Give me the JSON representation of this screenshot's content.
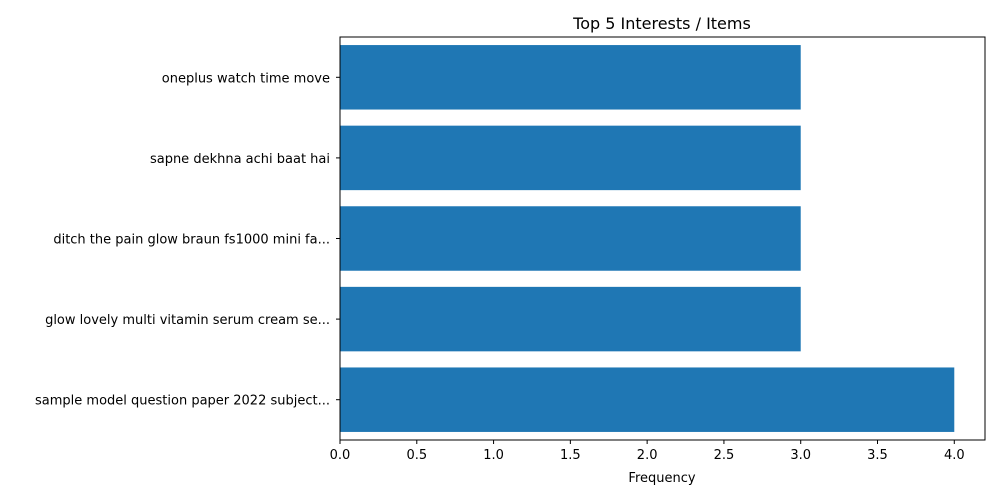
{
  "chart_data": {
    "type": "bar",
    "orientation": "horizontal",
    "title": "Top 5 Interests / Items",
    "xlabel": "Frequency",
    "ylabel": "",
    "xlim": [
      0,
      4.2
    ],
    "xticks": [
      "0.0",
      "0.5",
      "1.0",
      "1.5",
      "2.0",
      "2.5",
      "3.0",
      "3.5",
      "4.0"
    ],
    "categories": [
      "oneplus watch time move",
      "sapne dekhna achi baat hai",
      "ditch the pain glow braun fs1000 mini fa...",
      "glow lovely multi vitamin serum cream se...",
      "sample model question paper 2022 subject..."
    ],
    "values": [
      3,
      3,
      3,
      3,
      4
    ],
    "bar_color": "#1f77b4",
    "grid": false,
    "legend": "none"
  }
}
